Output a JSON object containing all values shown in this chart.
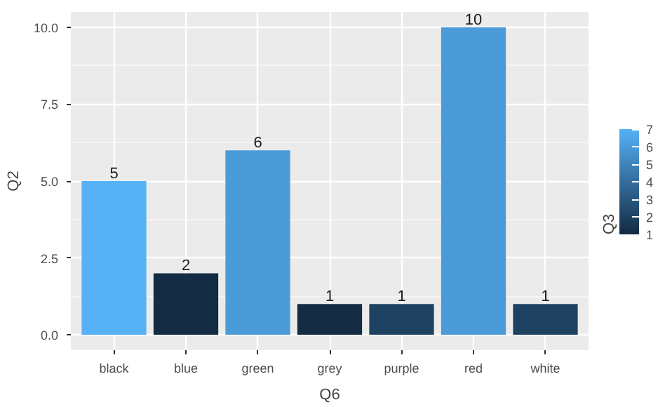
{
  "chart_data": {
    "type": "bar",
    "xlabel": "Q6",
    "ylabel": "Q2",
    "clabel": "Q3",
    "categories": [
      "black",
      "blue",
      "green",
      "grey",
      "purple",
      "red",
      "white"
    ],
    "values": [
      5,
      2,
      6,
      1,
      1,
      10,
      1
    ],
    "cvalues": [
      7,
      1,
      6,
      1,
      2,
      6,
      2
    ],
    "clim": [
      1,
      7
    ],
    "cticks": [
      1,
      2,
      3,
      4,
      5,
      6,
      7
    ],
    "ylim": [
      -0.5,
      10.5
    ],
    "yticks": [
      {
        "value": 0,
        "label": "0.0"
      },
      {
        "value": 2.5,
        "label": "2.5"
      },
      {
        "value": 5,
        "label": "5.0"
      },
      {
        "value": 7.5,
        "label": "7.5"
      },
      {
        "value": 10,
        "label": "10.0"
      }
    ],
    "grid": true,
    "data_labels": true
  }
}
